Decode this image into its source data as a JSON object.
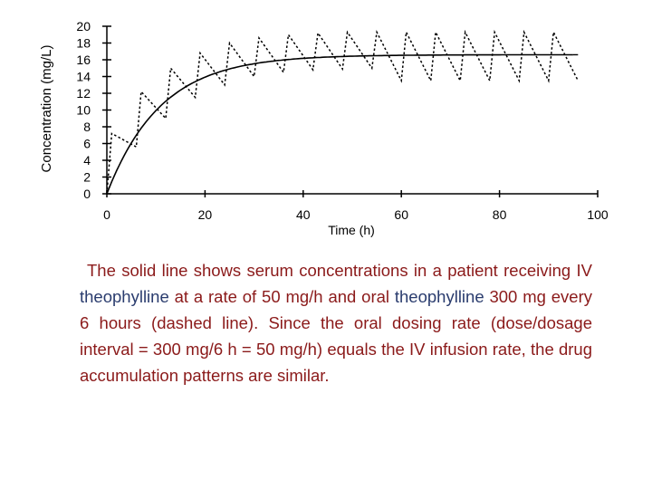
{
  "chart_data": {
    "type": "line",
    "xlabel": "Time (h)",
    "ylabel": "Concentration (mg/L)",
    "xlim": [
      0,
      100
    ],
    "ylim": [
      0,
      20
    ],
    "x_ticks": [
      0,
      20,
      40,
      60,
      80,
      100
    ],
    "y_ticks": [
      0,
      2,
      4,
      6,
      8,
      10,
      12,
      14,
      16,
      18,
      20
    ],
    "grid": false,
    "legend": "none",
    "series": [
      {
        "style": "solid",
        "x": [
          0,
          4,
          8,
          12,
          16,
          20,
          24,
          28,
          32,
          36,
          40,
          48,
          56,
          64,
          72,
          80,
          88,
          96
        ],
        "y": [
          0,
          5.0,
          8.6,
          11.0,
          12.8,
          14.0,
          14.9,
          15.5,
          15.9,
          16.2,
          16.4,
          16.5,
          16.6,
          16.6,
          16.6,
          16.6,
          16.6,
          16.6
        ]
      },
      {
        "style": "dashed",
        "x": [
          0,
          1,
          6,
          7,
          12,
          13,
          18,
          19,
          24,
          25,
          30,
          31,
          36,
          37,
          42,
          43,
          48,
          49,
          54,
          55,
          60,
          61,
          66,
          67,
          72,
          73,
          78,
          79,
          84,
          85,
          90,
          91,
          96
        ],
        "y": [
          0,
          7.2,
          5.6,
          12.2,
          9.0,
          15.0,
          11.5,
          16.8,
          13.0,
          18.0,
          14.0,
          18.6,
          14.5,
          19.0,
          14.8,
          19.2,
          14.9,
          19.3,
          15.0,
          19.3,
          13.5,
          19.3,
          13.5,
          19.3,
          13.5,
          19.3,
          13.5,
          19.3,
          13.5,
          19.3,
          13.5,
          19.3,
          13.5
        ]
      }
    ]
  },
  "caption": {
    "part1": "The solid line shows serum concentrations in a patient receiving IV ",
    "term1": "theophylline",
    "part2": " at a rate of 50 mg/h and oral ",
    "term2": "theophylline",
    "part3": " 300 mg every 6 hours (dashed line). Since the oral dosing rate (dose/dosage interval = 300 mg/6 h = 50 mg/h) equals the IV infusion rate, the drug accumulation patterns are similar."
  }
}
